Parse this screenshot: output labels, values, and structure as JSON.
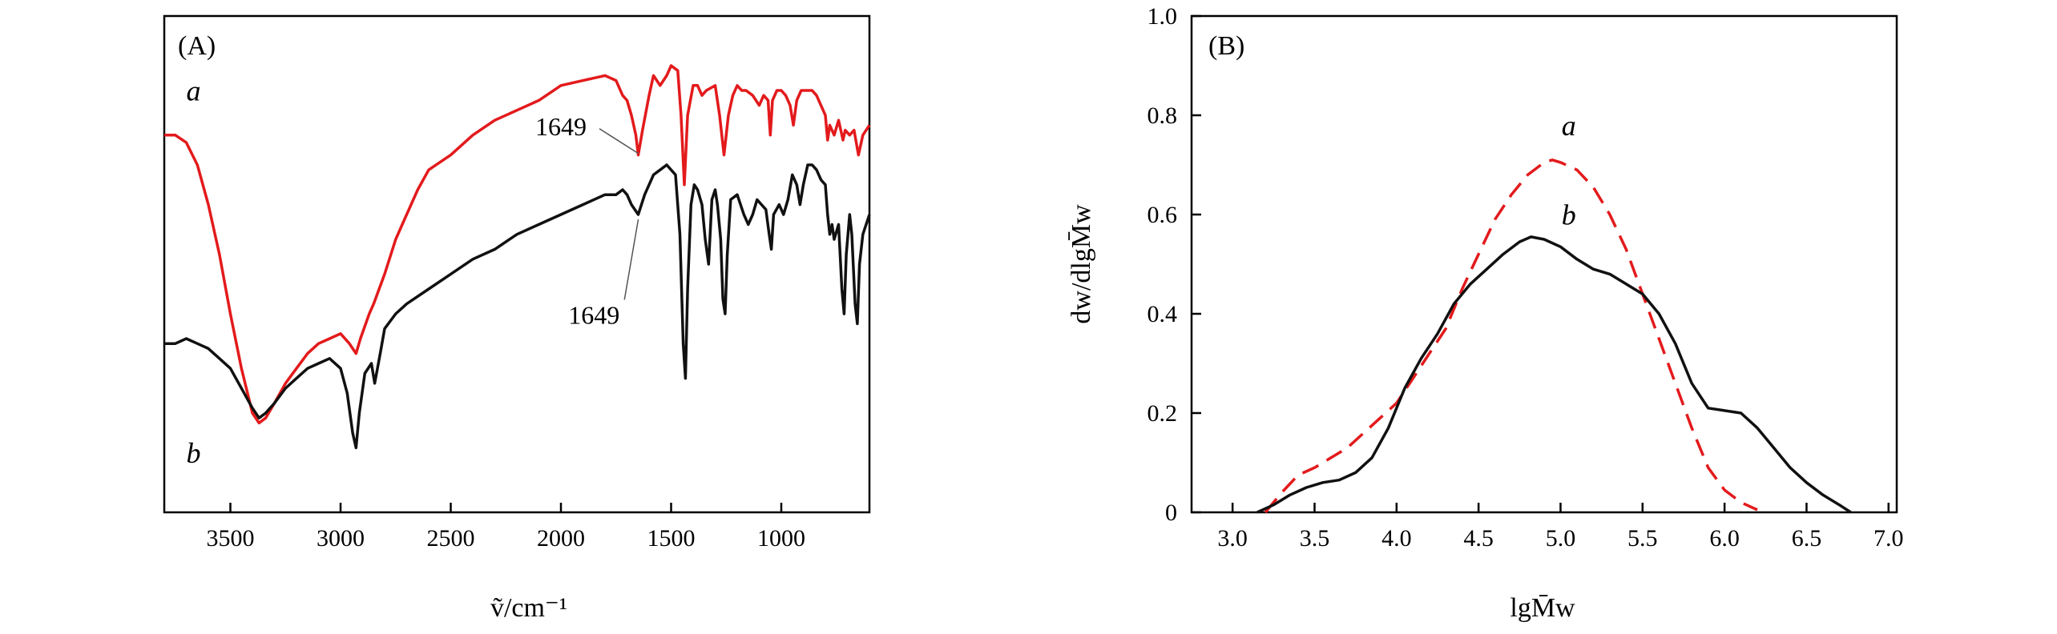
{
  "chart_data": [
    {
      "panel_label": "(A)",
      "type": "line",
      "xlabel": "ṽ/cm⁻¹",
      "xlim": [
        3800,
        600
      ],
      "x_reversed": true,
      "xticks": [
        3500,
        3000,
        2500,
        2000,
        1500,
        1000
      ],
      "y_ticks_shown": false,
      "colors": {
        "a": "#e31a1c",
        "b": "#111111"
      },
      "annotations": [
        {
          "text": "1649",
          "series": "a",
          "x": 1649
        },
        {
          "text": "1649",
          "series": "b",
          "x": 1649
        }
      ],
      "series": [
        {
          "name": "a",
          "color": "#e31a1c",
          "points": [
            [
              3800,
              0.76
            ],
            [
              3750,
              0.76
            ],
            [
              3700,
              0.745
            ],
            [
              3650,
              0.7
            ],
            [
              3600,
              0.62
            ],
            [
              3550,
              0.52
            ],
            [
              3500,
              0.4
            ],
            [
              3450,
              0.29
            ],
            [
              3400,
              0.2
            ],
            [
              3370,
              0.18
            ],
            [
              3340,
              0.19
            ],
            [
              3300,
              0.22
            ],
            [
              3250,
              0.26
            ],
            [
              3200,
              0.29
            ],
            [
              3150,
              0.32
            ],
            [
              3100,
              0.34
            ],
            [
              3050,
              0.35
            ],
            [
              3000,
              0.36
            ],
            [
              2960,
              0.34
            ],
            [
              2930,
              0.32
            ],
            [
              2910,
              0.35
            ],
            [
              2870,
              0.4
            ],
            [
              2850,
              0.42
            ],
            [
              2800,
              0.48
            ],
            [
              2750,
              0.55
            ],
            [
              2700,
              0.6
            ],
            [
              2650,
              0.65
            ],
            [
              2600,
              0.69
            ],
            [
              2500,
              0.72
            ],
            [
              2400,
              0.76
            ],
            [
              2300,
              0.79
            ],
            [
              2200,
              0.81
            ],
            [
              2100,
              0.83
            ],
            [
              2000,
              0.86
            ],
            [
              1900,
              0.87
            ],
            [
              1800,
              0.88
            ],
            [
              1750,
              0.87
            ],
            [
              1720,
              0.84
            ],
            [
              1700,
              0.83
            ],
            [
              1680,
              0.8
            ],
            [
              1660,
              0.76
            ],
            [
              1649,
              0.72
            ],
            [
              1630,
              0.77
            ],
            [
              1600,
              0.84
            ],
            [
              1580,
              0.88
            ],
            [
              1550,
              0.86
            ],
            [
              1520,
              0.88
            ],
            [
              1500,
              0.9
            ],
            [
              1470,
              0.89
            ],
            [
              1455,
              0.8
            ],
            [
              1440,
              0.66
            ],
            [
              1425,
              0.8
            ],
            [
              1400,
              0.86
            ],
            [
              1380,
              0.86
            ],
            [
              1360,
              0.84
            ],
            [
              1340,
              0.85
            ],
            [
              1300,
              0.86
            ],
            [
              1280,
              0.8
            ],
            [
              1260,
              0.72
            ],
            [
              1240,
              0.8
            ],
            [
              1220,
              0.84
            ],
            [
              1200,
              0.86
            ],
            [
              1180,
              0.85
            ],
            [
              1160,
              0.85
            ],
            [
              1130,
              0.84
            ],
            [
              1100,
              0.82
            ],
            [
              1080,
              0.84
            ],
            [
              1060,
              0.83
            ],
            [
              1050,
              0.76
            ],
            [
              1040,
              0.83
            ],
            [
              1020,
              0.85
            ],
            [
              1000,
              0.85
            ],
            [
              980,
              0.84
            ],
            [
              960,
              0.82
            ],
            [
              945,
              0.78
            ],
            [
              930,
              0.83
            ],
            [
              910,
              0.85
            ],
            [
              890,
              0.85
            ],
            [
              860,
              0.85
            ],
            [
              840,
              0.84
            ],
            [
              820,
              0.82
            ],
            [
              800,
              0.8
            ],
            [
              790,
              0.75
            ],
            [
              780,
              0.78
            ],
            [
              760,
              0.76
            ],
            [
              740,
              0.79
            ],
            [
              720,
              0.75
            ],
            [
              710,
              0.77
            ],
            [
              690,
              0.76
            ],
            [
              670,
              0.77
            ],
            [
              650,
              0.72
            ],
            [
              630,
              0.76
            ],
            [
              600,
              0.78
            ]
          ]
        },
        {
          "name": "b",
          "color": "#111111",
          "points": [
            [
              3800,
              0.34
            ],
            [
              3750,
              0.34
            ],
            [
              3700,
              0.35
            ],
            [
              3650,
              0.34
            ],
            [
              3600,
              0.33
            ],
            [
              3550,
              0.31
            ],
            [
              3500,
              0.29
            ],
            [
              3450,
              0.25
            ],
            [
              3400,
              0.21
            ],
            [
              3370,
              0.19
            ],
            [
              3340,
              0.2
            ],
            [
              3300,
              0.22
            ],
            [
              3250,
              0.25
            ],
            [
              3200,
              0.27
            ],
            [
              3150,
              0.29
            ],
            [
              3100,
              0.3
            ],
            [
              3050,
              0.31
            ],
            [
              3000,
              0.29
            ],
            [
              2970,
              0.24
            ],
            [
              2945,
              0.16
            ],
            [
              2930,
              0.13
            ],
            [
              2915,
              0.2
            ],
            [
              2890,
              0.28
            ],
            [
              2860,
              0.3
            ],
            [
              2845,
              0.26
            ],
            [
              2820,
              0.32
            ],
            [
              2800,
              0.37
            ],
            [
              2750,
              0.4
            ],
            [
              2700,
              0.42
            ],
            [
              2600,
              0.45
            ],
            [
              2500,
              0.48
            ],
            [
              2400,
              0.51
            ],
            [
              2300,
              0.53
            ],
            [
              2200,
              0.56
            ],
            [
              2100,
              0.58
            ],
            [
              2000,
              0.6
            ],
            [
              1900,
              0.62
            ],
            [
              1800,
              0.64
            ],
            [
              1750,
              0.64
            ],
            [
              1720,
              0.65
            ],
            [
              1700,
              0.64
            ],
            [
              1680,
              0.62
            ],
            [
              1649,
              0.6
            ],
            [
              1620,
              0.64
            ],
            [
              1600,
              0.66
            ],
            [
              1580,
              0.68
            ],
            [
              1550,
              0.69
            ],
            [
              1520,
              0.7
            ],
            [
              1500,
              0.69
            ],
            [
              1480,
              0.68
            ],
            [
              1460,
              0.56
            ],
            [
              1445,
              0.34
            ],
            [
              1435,
              0.27
            ],
            [
              1425,
              0.45
            ],
            [
              1410,
              0.62
            ],
            [
              1395,
              0.66
            ],
            [
              1380,
              0.65
            ],
            [
              1360,
              0.62
            ],
            [
              1345,
              0.55
            ],
            [
              1330,
              0.5
            ],
            [
              1315,
              0.63
            ],
            [
              1300,
              0.65
            ],
            [
              1290,
              0.62
            ],
            [
              1275,
              0.55
            ],
            [
              1265,
              0.43
            ],
            [
              1255,
              0.4
            ],
            [
              1245,
              0.52
            ],
            [
              1230,
              0.63
            ],
            [
              1200,
              0.64
            ],
            [
              1170,
              0.6
            ],
            [
              1150,
              0.58
            ],
            [
              1130,
              0.6
            ],
            [
              1110,
              0.63
            ],
            [
              1090,
              0.62
            ],
            [
              1070,
              0.61
            ],
            [
              1055,
              0.56
            ],
            [
              1045,
              0.53
            ],
            [
              1035,
              0.6
            ],
            [
              1010,
              0.62
            ],
            [
              990,
              0.6
            ],
            [
              970,
              0.63
            ],
            [
              950,
              0.68
            ],
            [
              930,
              0.66
            ],
            [
              915,
              0.62
            ],
            [
              900,
              0.66
            ],
            [
              880,
              0.7
            ],
            [
              860,
              0.7
            ],
            [
              840,
              0.69
            ],
            [
              820,
              0.67
            ],
            [
              800,
              0.66
            ],
            [
              790,
              0.6
            ],
            [
              780,
              0.56
            ],
            [
              770,
              0.58
            ],
            [
              760,
              0.55
            ],
            [
              740,
              0.58
            ],
            [
              725,
              0.45
            ],
            [
              715,
              0.4
            ],
            [
              705,
              0.52
            ],
            [
              690,
              0.6
            ],
            [
              680,
              0.56
            ],
            [
              665,
              0.42
            ],
            [
              655,
              0.38
            ],
            [
              645,
              0.5
            ],
            [
              630,
              0.56
            ],
            [
              600,
              0.6
            ]
          ]
        }
      ]
    },
    {
      "panel_label": "(B)",
      "type": "line",
      "xlabel": "lgM̄w",
      "ylabel": "dw/dlgM̄w",
      "xlim": [
        2.75,
        7.05
      ],
      "ylim": [
        0,
        1.0
      ],
      "xticks": [
        "3.0",
        "3.5",
        "4.0",
        "4.5",
        "5.0",
        "5.5",
        "6.0",
        "6.5",
        "7.0"
      ],
      "yticks": [
        "0",
        "0.2",
        "0.4",
        "0.6",
        "0.8",
        "1.0"
      ],
      "colors": {
        "a": "#e31a1c",
        "b": "#111111"
      },
      "series": [
        {
          "name": "a",
          "color": "#e31a1c",
          "dashed": true,
          "points": [
            [
              3.2,
              0.0
            ],
            [
              3.3,
              0.04
            ],
            [
              3.4,
              0.075
            ],
            [
              3.5,
              0.09
            ],
            [
              3.6,
              0.11
            ],
            [
              3.7,
              0.13
            ],
            [
              3.8,
              0.16
            ],
            [
              3.9,
              0.19
            ],
            [
              4.0,
              0.22
            ],
            [
              4.1,
              0.27
            ],
            [
              4.2,
              0.32
            ],
            [
              4.3,
              0.37
            ],
            [
              4.4,
              0.45
            ],
            [
              4.5,
              0.52
            ],
            [
              4.6,
              0.59
            ],
            [
              4.7,
              0.64
            ],
            [
              4.8,
              0.68
            ],
            [
              4.9,
              0.705
            ],
            [
              4.95,
              0.71
            ],
            [
              5.0,
              0.705
            ],
            [
              5.1,
              0.69
            ],
            [
              5.2,
              0.655
            ],
            [
              5.3,
              0.6
            ],
            [
              5.4,
              0.53
            ],
            [
              5.5,
              0.44
            ],
            [
              5.6,
              0.35
            ],
            [
              5.7,
              0.26
            ],
            [
              5.8,
              0.17
            ],
            [
              5.9,
              0.09
            ],
            [
              6.0,
              0.045
            ],
            [
              6.1,
              0.02
            ],
            [
              6.2,
              0.005
            ]
          ]
        },
        {
          "name": "b",
          "color": "#111111",
          "dashed": false,
          "points": [
            [
              3.15,
              0.0
            ],
            [
              3.25,
              0.015
            ],
            [
              3.35,
              0.035
            ],
            [
              3.45,
              0.05
            ],
            [
              3.55,
              0.06
            ],
            [
              3.65,
              0.065
            ],
            [
              3.75,
              0.08
            ],
            [
              3.85,
              0.11
            ],
            [
              3.95,
              0.17
            ],
            [
              4.05,
              0.25
            ],
            [
              4.15,
              0.31
            ],
            [
              4.25,
              0.36
            ],
            [
              4.35,
              0.42
            ],
            [
              4.45,
              0.46
            ],
            [
              4.55,
              0.49
            ],
            [
              4.65,
              0.52
            ],
            [
              4.75,
              0.545
            ],
            [
              4.82,
              0.555
            ],
            [
              4.9,
              0.55
            ],
            [
              5.0,
              0.535
            ],
            [
              5.1,
              0.51
            ],
            [
              5.2,
              0.49
            ],
            [
              5.3,
              0.48
            ],
            [
              5.4,
              0.46
            ],
            [
              5.5,
              0.44
            ],
            [
              5.6,
              0.4
            ],
            [
              5.7,
              0.34
            ],
            [
              5.8,
              0.26
            ],
            [
              5.9,
              0.21
            ],
            [
              6.0,
              0.205
            ],
            [
              6.1,
              0.2
            ],
            [
              6.2,
              0.17
            ],
            [
              6.3,
              0.13
            ],
            [
              6.4,
              0.09
            ],
            [
              6.5,
              0.06
            ],
            [
              6.6,
              0.035
            ],
            [
              6.7,
              0.015
            ],
            [
              6.77,
              0.0
            ]
          ]
        }
      ]
    }
  ]
}
